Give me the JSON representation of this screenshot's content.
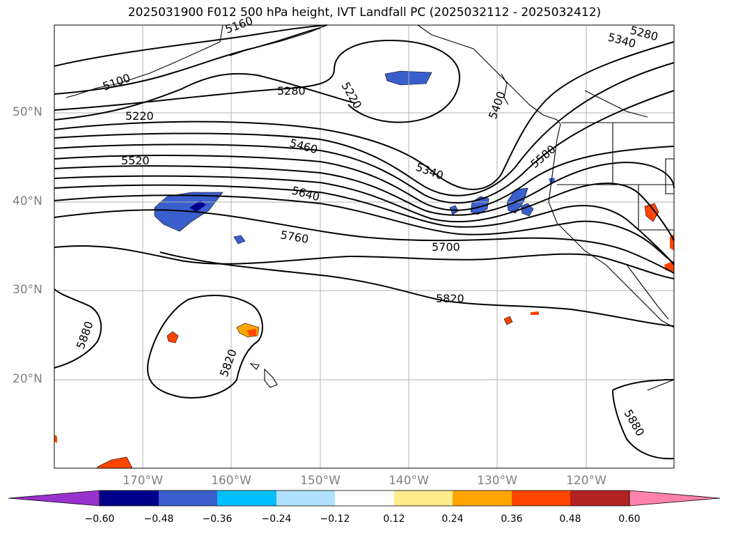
{
  "title": "2025031900 F012 500 hPa height, IVT Landfall PC (2025032112 - 2025032412)",
  "map": {
    "projection": "PlateCarree",
    "lat_labels": [
      "50°N",
      "40°N",
      "30°N",
      "20°N"
    ],
    "lon_labels": [
      "170°W",
      "160°W",
      "150°W",
      "140°W",
      "130°W",
      "120°W"
    ],
    "gridlines": true,
    "contour_color": "#000000",
    "contour_labels": [
      {
        "text": "5100"
      },
      {
        "text": "5220"
      },
      {
        "text": "5280"
      },
      {
        "text": "5220"
      },
      {
        "text": "5460"
      },
      {
        "text": "5520"
      },
      {
        "text": "5340"
      },
      {
        "text": "5640"
      },
      {
        "text": "5400"
      },
      {
        "text": "5580"
      },
      {
        "text": "5760"
      },
      {
        "text": "5700"
      },
      {
        "text": "5820"
      },
      {
        "text": "5880"
      },
      {
        "text": "5820"
      },
      {
        "text": "5880"
      },
      {
        "text": "5280"
      },
      {
        "text": "5340"
      },
      {
        "text": "5160"
      }
    ]
  },
  "colorbar": {
    "ticks": [
      "−0.60",
      "−0.48",
      "−0.36",
      "−0.24",
      "−0.12",
      "0.12",
      "0.24",
      "0.36",
      "0.48",
      "0.60"
    ],
    "colors": [
      "#9932cc",
      "#00008b",
      "#3a5fcd",
      "#00bfff",
      "#b0e2ff",
      "#ffffff",
      "#ffec8b",
      "#ffa500",
      "#ff4500",
      "#b22222",
      "#ff82ab"
    ],
    "extend": "both"
  }
}
